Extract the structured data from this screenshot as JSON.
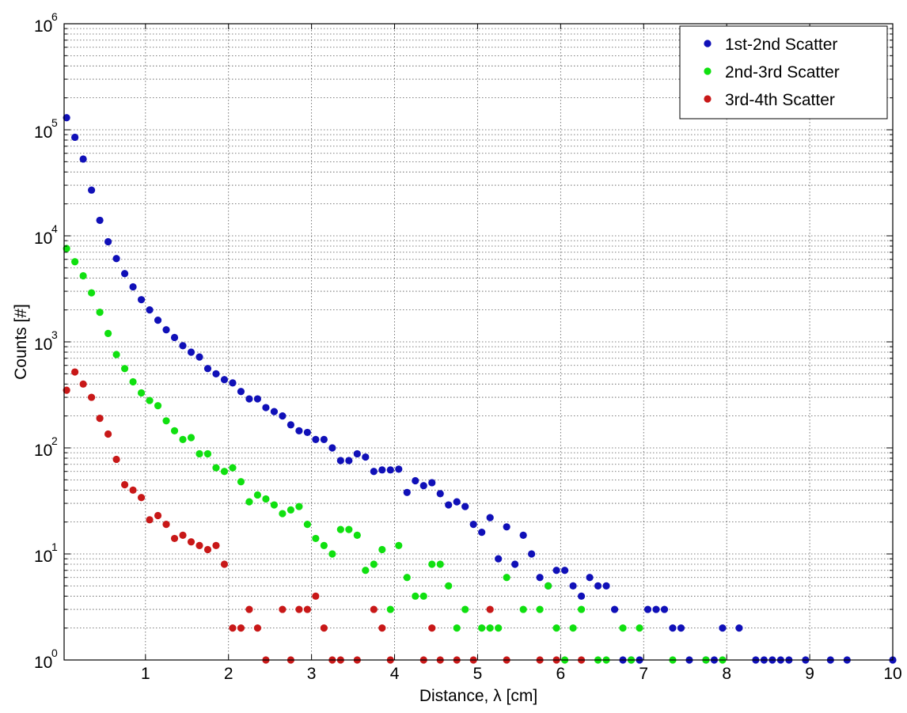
{
  "chart_data": {
    "type": "scatter",
    "xlabel": "Distance, λ [cm]",
    "ylabel": "Counts [#]",
    "xlim": [
      0.02,
      10
    ],
    "ylim": [
      1,
      1000000
    ],
    "yscale": "log",
    "grid": true,
    "legend_position": "top-right",
    "x_ticks": [
      "1",
      "2",
      "3",
      "4",
      "5",
      "6",
      "7",
      "8",
      "9",
      "10"
    ],
    "y_ticks": [
      {
        "base": "10",
        "exp": "0"
      },
      {
        "base": "10",
        "exp": "1"
      },
      {
        "base": "10",
        "exp": "2"
      },
      {
        "base": "10",
        "exp": "3"
      },
      {
        "base": "10",
        "exp": "4"
      },
      {
        "base": "10",
        "exp": "5"
      },
      {
        "base": "10",
        "exp": "6"
      }
    ],
    "series": [
      {
        "name": "1st-2nd Scatter",
        "color": "#1010b8",
        "points": [
          [
            0.05,
            130000
          ],
          [
            0.15,
            85000
          ],
          [
            0.25,
            53000
          ],
          [
            0.35,
            27000
          ],
          [
            0.45,
            14000
          ],
          [
            0.55,
            8800
          ],
          [
            0.65,
            6100
          ],
          [
            0.75,
            4400
          ],
          [
            0.85,
            3300
          ],
          [
            0.95,
            2500
          ],
          [
            1.05,
            2000
          ],
          [
            1.15,
            1600
          ],
          [
            1.25,
            1300
          ],
          [
            1.35,
            1100
          ],
          [
            1.45,
            920
          ],
          [
            1.55,
            800
          ],
          [
            1.65,
            720
          ],
          [
            1.75,
            560
          ],
          [
            1.85,
            500
          ],
          [
            1.95,
            440
          ],
          [
            2.05,
            410
          ],
          [
            2.15,
            340
          ],
          [
            2.25,
            290
          ],
          [
            2.35,
            290
          ],
          [
            2.45,
            240
          ],
          [
            2.55,
            220
          ],
          [
            2.65,
            200
          ],
          [
            2.75,
            165
          ],
          [
            2.85,
            145
          ],
          [
            2.95,
            140
          ],
          [
            3.05,
            120
          ],
          [
            3.15,
            120
          ],
          [
            3.25,
            100
          ],
          [
            3.35,
            76
          ],
          [
            3.45,
            76
          ],
          [
            3.55,
            88
          ],
          [
            3.65,
            82
          ],
          [
            3.75,
            60
          ],
          [
            3.85,
            62
          ],
          [
            3.95,
            62
          ],
          [
            4.05,
            63
          ],
          [
            4.15,
            38
          ],
          [
            4.25,
            49
          ],
          [
            4.35,
            44
          ],
          [
            4.45,
            47
          ],
          [
            4.55,
            37
          ],
          [
            4.65,
            29
          ],
          [
            4.75,
            31
          ],
          [
            4.85,
            28
          ],
          [
            4.95,
            19
          ],
          [
            5.05,
            16
          ],
          [
            5.15,
            22
          ],
          [
            5.25,
            9
          ],
          [
            5.35,
            18
          ],
          [
            5.45,
            8
          ],
          [
            5.55,
            15
          ],
          [
            5.65,
            10
          ],
          [
            5.75,
            6
          ],
          [
            5.85,
            5
          ],
          [
            5.95,
            7
          ],
          [
            6.05,
            7
          ],
          [
            6.15,
            5
          ],
          [
            6.25,
            4
          ],
          [
            6.35,
            6
          ],
          [
            6.45,
            5
          ],
          [
            6.55,
            5
          ],
          [
            6.65,
            3
          ],
          [
            6.75,
            1
          ],
          [
            6.85,
            1
          ],
          [
            6.95,
            1
          ],
          [
            7.05,
            3
          ],
          [
            7.15,
            3
          ],
          [
            7.25,
            3
          ],
          [
            7.35,
            2
          ],
          [
            7.45,
            2
          ],
          [
            7.55,
            1
          ],
          [
            7.75,
            1
          ],
          [
            7.85,
            1
          ],
          [
            7.95,
            2
          ],
          [
            8.15,
            2
          ],
          [
            8.35,
            1
          ],
          [
            8.45,
            1
          ],
          [
            8.55,
            1
          ],
          [
            8.65,
            1
          ],
          [
            8.75,
            1
          ],
          [
            8.95,
            1
          ],
          [
            9.25,
            1
          ],
          [
            9.45,
            1
          ],
          [
            10.15,
            1
          ]
        ]
      },
      {
        "name": "2nd-3rd Scatter",
        "color": "#10e010",
        "points": [
          [
            0.05,
            7600
          ],
          [
            0.15,
            5700
          ],
          [
            0.25,
            4200
          ],
          [
            0.35,
            2900
          ],
          [
            0.45,
            1900
          ],
          [
            0.55,
            1200
          ],
          [
            0.65,
            760
          ],
          [
            0.75,
            560
          ],
          [
            0.85,
            420
          ],
          [
            0.95,
            330
          ],
          [
            1.05,
            280
          ],
          [
            1.15,
            250
          ],
          [
            1.25,
            180
          ],
          [
            1.35,
            145
          ],
          [
            1.45,
            120
          ],
          [
            1.55,
            125
          ],
          [
            1.65,
            88
          ],
          [
            1.75,
            88
          ],
          [
            1.85,
            65
          ],
          [
            1.95,
            60
          ],
          [
            2.05,
            65
          ],
          [
            2.15,
            48
          ],
          [
            2.25,
            31
          ],
          [
            2.35,
            36
          ],
          [
            2.45,
            33
          ],
          [
            2.55,
            29
          ],
          [
            2.65,
            24
          ],
          [
            2.75,
            26
          ],
          [
            2.85,
            28
          ],
          [
            2.95,
            19
          ],
          [
            3.05,
            14
          ],
          [
            3.15,
            12
          ],
          [
            3.25,
            10
          ],
          [
            3.35,
            17
          ],
          [
            3.45,
            17
          ],
          [
            3.55,
            15
          ],
          [
            3.65,
            7
          ],
          [
            3.75,
            8
          ],
          [
            3.85,
            11
          ],
          [
            3.95,
            3
          ],
          [
            4.05,
            12
          ],
          [
            4.15,
            6
          ],
          [
            4.25,
            4
          ],
          [
            4.35,
            4
          ],
          [
            4.45,
            8
          ],
          [
            4.55,
            8
          ],
          [
            4.65,
            5
          ],
          [
            4.75,
            2
          ],
          [
            4.85,
            3
          ],
          [
            5.05,
            2
          ],
          [
            5.15,
            2
          ],
          [
            5.25,
            2
          ],
          [
            5.35,
            6
          ],
          [
            5.55,
            3
          ],
          [
            5.75,
            3
          ],
          [
            5.85,
            5
          ],
          [
            5.95,
            2
          ],
          [
            6.05,
            1
          ],
          [
            6.15,
            2
          ],
          [
            6.25,
            3
          ],
          [
            6.45,
            1
          ],
          [
            6.55,
            1
          ],
          [
            6.75,
            2
          ],
          [
            6.85,
            1
          ],
          [
            6.95,
            2
          ],
          [
            7.35,
            1
          ],
          [
            7.75,
            1
          ],
          [
            7.95,
            1
          ]
        ]
      },
      {
        "name": "3rd-4th Scatter",
        "color": "#c81818",
        "points": [
          [
            0.05,
            350
          ],
          [
            0.15,
            520
          ],
          [
            0.25,
            400
          ],
          [
            0.35,
            300
          ],
          [
            0.45,
            190
          ],
          [
            0.55,
            135
          ],
          [
            0.65,
            78
          ],
          [
            0.75,
            45
          ],
          [
            0.85,
            40
          ],
          [
            0.95,
            34
          ],
          [
            1.05,
            21
          ],
          [
            1.15,
            23
          ],
          [
            1.25,
            19
          ],
          [
            1.35,
            14
          ],
          [
            1.45,
            15
          ],
          [
            1.55,
            13
          ],
          [
            1.65,
            12
          ],
          [
            1.75,
            11
          ],
          [
            1.85,
            12
          ],
          [
            1.95,
            8
          ],
          [
            2.05,
            2
          ],
          [
            2.15,
            2
          ],
          [
            2.25,
            3
          ],
          [
            2.35,
            2
          ],
          [
            2.45,
            1
          ],
          [
            2.65,
            3
          ],
          [
            2.75,
            1
          ],
          [
            2.85,
            3
          ],
          [
            2.95,
            3
          ],
          [
            3.05,
            4
          ],
          [
            3.15,
            2
          ],
          [
            3.25,
            1
          ],
          [
            3.35,
            1
          ],
          [
            3.55,
            1
          ],
          [
            3.75,
            3
          ],
          [
            3.85,
            2
          ],
          [
            3.95,
            1
          ],
          [
            4.35,
            1
          ],
          [
            4.45,
            2
          ],
          [
            4.55,
            1
          ],
          [
            4.75,
            1
          ],
          [
            4.95,
            1
          ],
          [
            5.15,
            3
          ],
          [
            5.35,
            1
          ],
          [
            5.75,
            1
          ],
          [
            5.95,
            1
          ],
          [
            6.25,
            1
          ]
        ]
      }
    ]
  }
}
